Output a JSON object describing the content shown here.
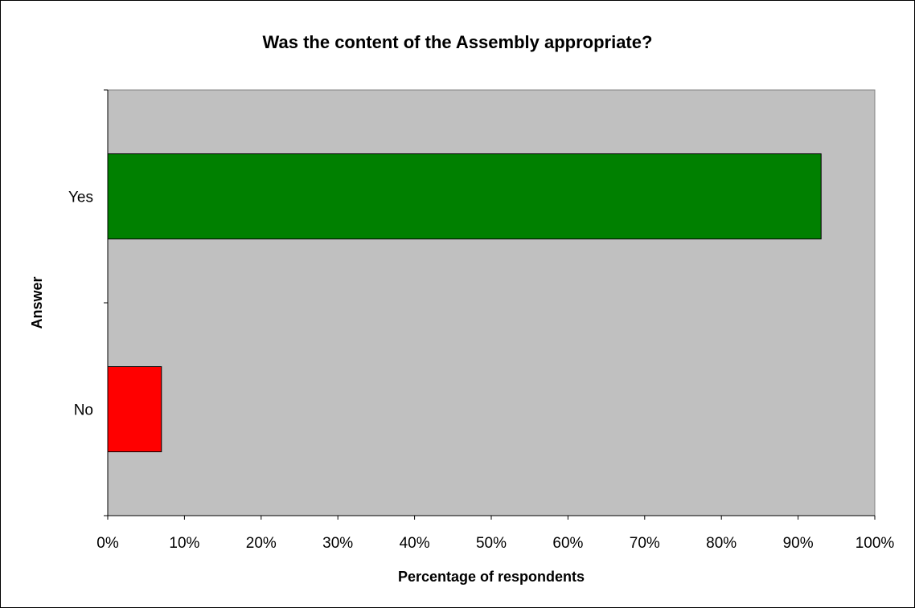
{
  "chart_data": {
    "type": "bar",
    "orientation": "horizontal",
    "title": "Was the content of the Assembly appropriate?",
    "xlabel": "Percentage of respondents",
    "ylabel": "Answer",
    "categories": [
      "No",
      "Yes"
    ],
    "values": [
      7,
      93
    ],
    "bar_colors": [
      "#ff0000",
      "#008000"
    ],
    "xlim": [
      0,
      100
    ],
    "x_ticks": [
      "0%",
      "10%",
      "20%",
      "30%",
      "40%",
      "50%",
      "60%",
      "70%",
      "80%",
      "90%",
      "100%"
    ],
    "plot_background": "#c0c0c0",
    "grid": false,
    "legend": "none"
  }
}
